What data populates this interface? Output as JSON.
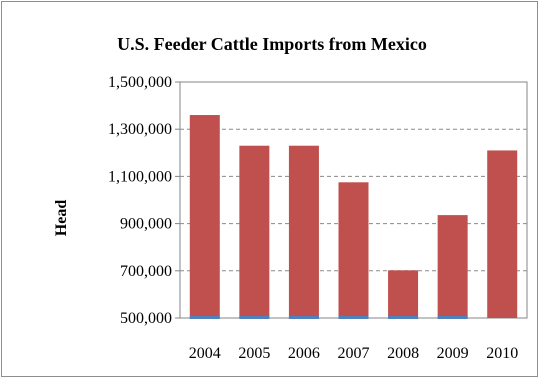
{
  "chart_data": {
    "type": "bar",
    "title": "U.S. Feeder Cattle Imports from Mexico",
    "xlabel": "",
    "ylabel": "Head",
    "categories": [
      "2004",
      "2005",
      "2006",
      "2007",
      "2008",
      "2009",
      "2010"
    ],
    "series": [
      {
        "values": [
          1360000,
          1230000,
          1230000,
          1075000,
          702000,
          936000,
          1210000
        ],
        "color": "#c0504d"
      },
      {
        "values": [
          500000,
          500000,
          500000,
          500000,
          500000,
          500000,
          500000
        ],
        "color": "#4f81bd"
      }
    ],
    "ylim": [
      500000,
      1500000
    ],
    "yticks": [
      "1,500,000",
      "1,300,000",
      "1,100,000",
      "900,000",
      "700,000",
      "500,000"
    ],
    "ytick_values": [
      1500000,
      1300000,
      1100000,
      900000,
      700000,
      500000
    ],
    "grid": true,
    "grid_style": "dashed",
    "legend": "none"
  }
}
